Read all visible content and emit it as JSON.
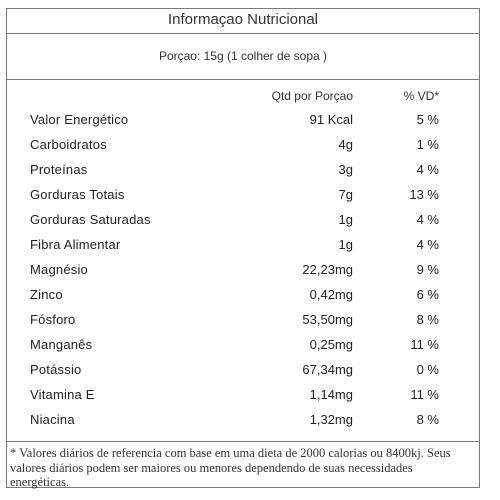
{
  "title": "Informaçao Nutricional",
  "serving": "Porçao: 15g (1 colher de sopa )",
  "headers": {
    "qty": "Qtd por Porçao",
    "vd": "% VD*"
  },
  "rows": [
    {
      "name": "Valor Energético",
      "qty": "91 Kcal",
      "vd": "5 %"
    },
    {
      "name": "Carboidratos",
      "qty": "4g",
      "vd": "1 %"
    },
    {
      "name": "Proteínas",
      "qty": "3g",
      "vd": "4 %"
    },
    {
      "name": "Gorduras Totais",
      "qty": "7g",
      "vd": "13 %"
    },
    {
      "name": "Gorduras Saturadas",
      "qty": "1g",
      "vd": "4 %"
    },
    {
      "name": "Fibra Alimentar",
      "qty": "1g",
      "vd": "4 %"
    },
    {
      "name": "Magnésio",
      "qty": "22,23mg",
      "vd": "9 %"
    },
    {
      "name": "Zinco",
      "qty": "0,42mg",
      "vd": "6 %"
    },
    {
      "name": "Fósforo",
      "qty": "53,50mg",
      "vd": "8 %"
    },
    {
      "name": "Manganês",
      "qty": "0,25mg",
      "vd": "11 %"
    },
    {
      "name": "Potássio",
      "qty": "67,34mg",
      "vd": "0 %"
    },
    {
      "name": "Vitamina E",
      "qty": "1,14mg",
      "vd": "11 %"
    },
    {
      "name": "Niacina",
      "qty": "1,32mg",
      "vd": "8 %"
    }
  ],
  "footnote": "* Valores diários de referencia com base em uma dieta de 2000 calorias ou 8400kj. Seus valores diários podem ser maiores ou menores dependendo de suas necessidades energéticas."
}
